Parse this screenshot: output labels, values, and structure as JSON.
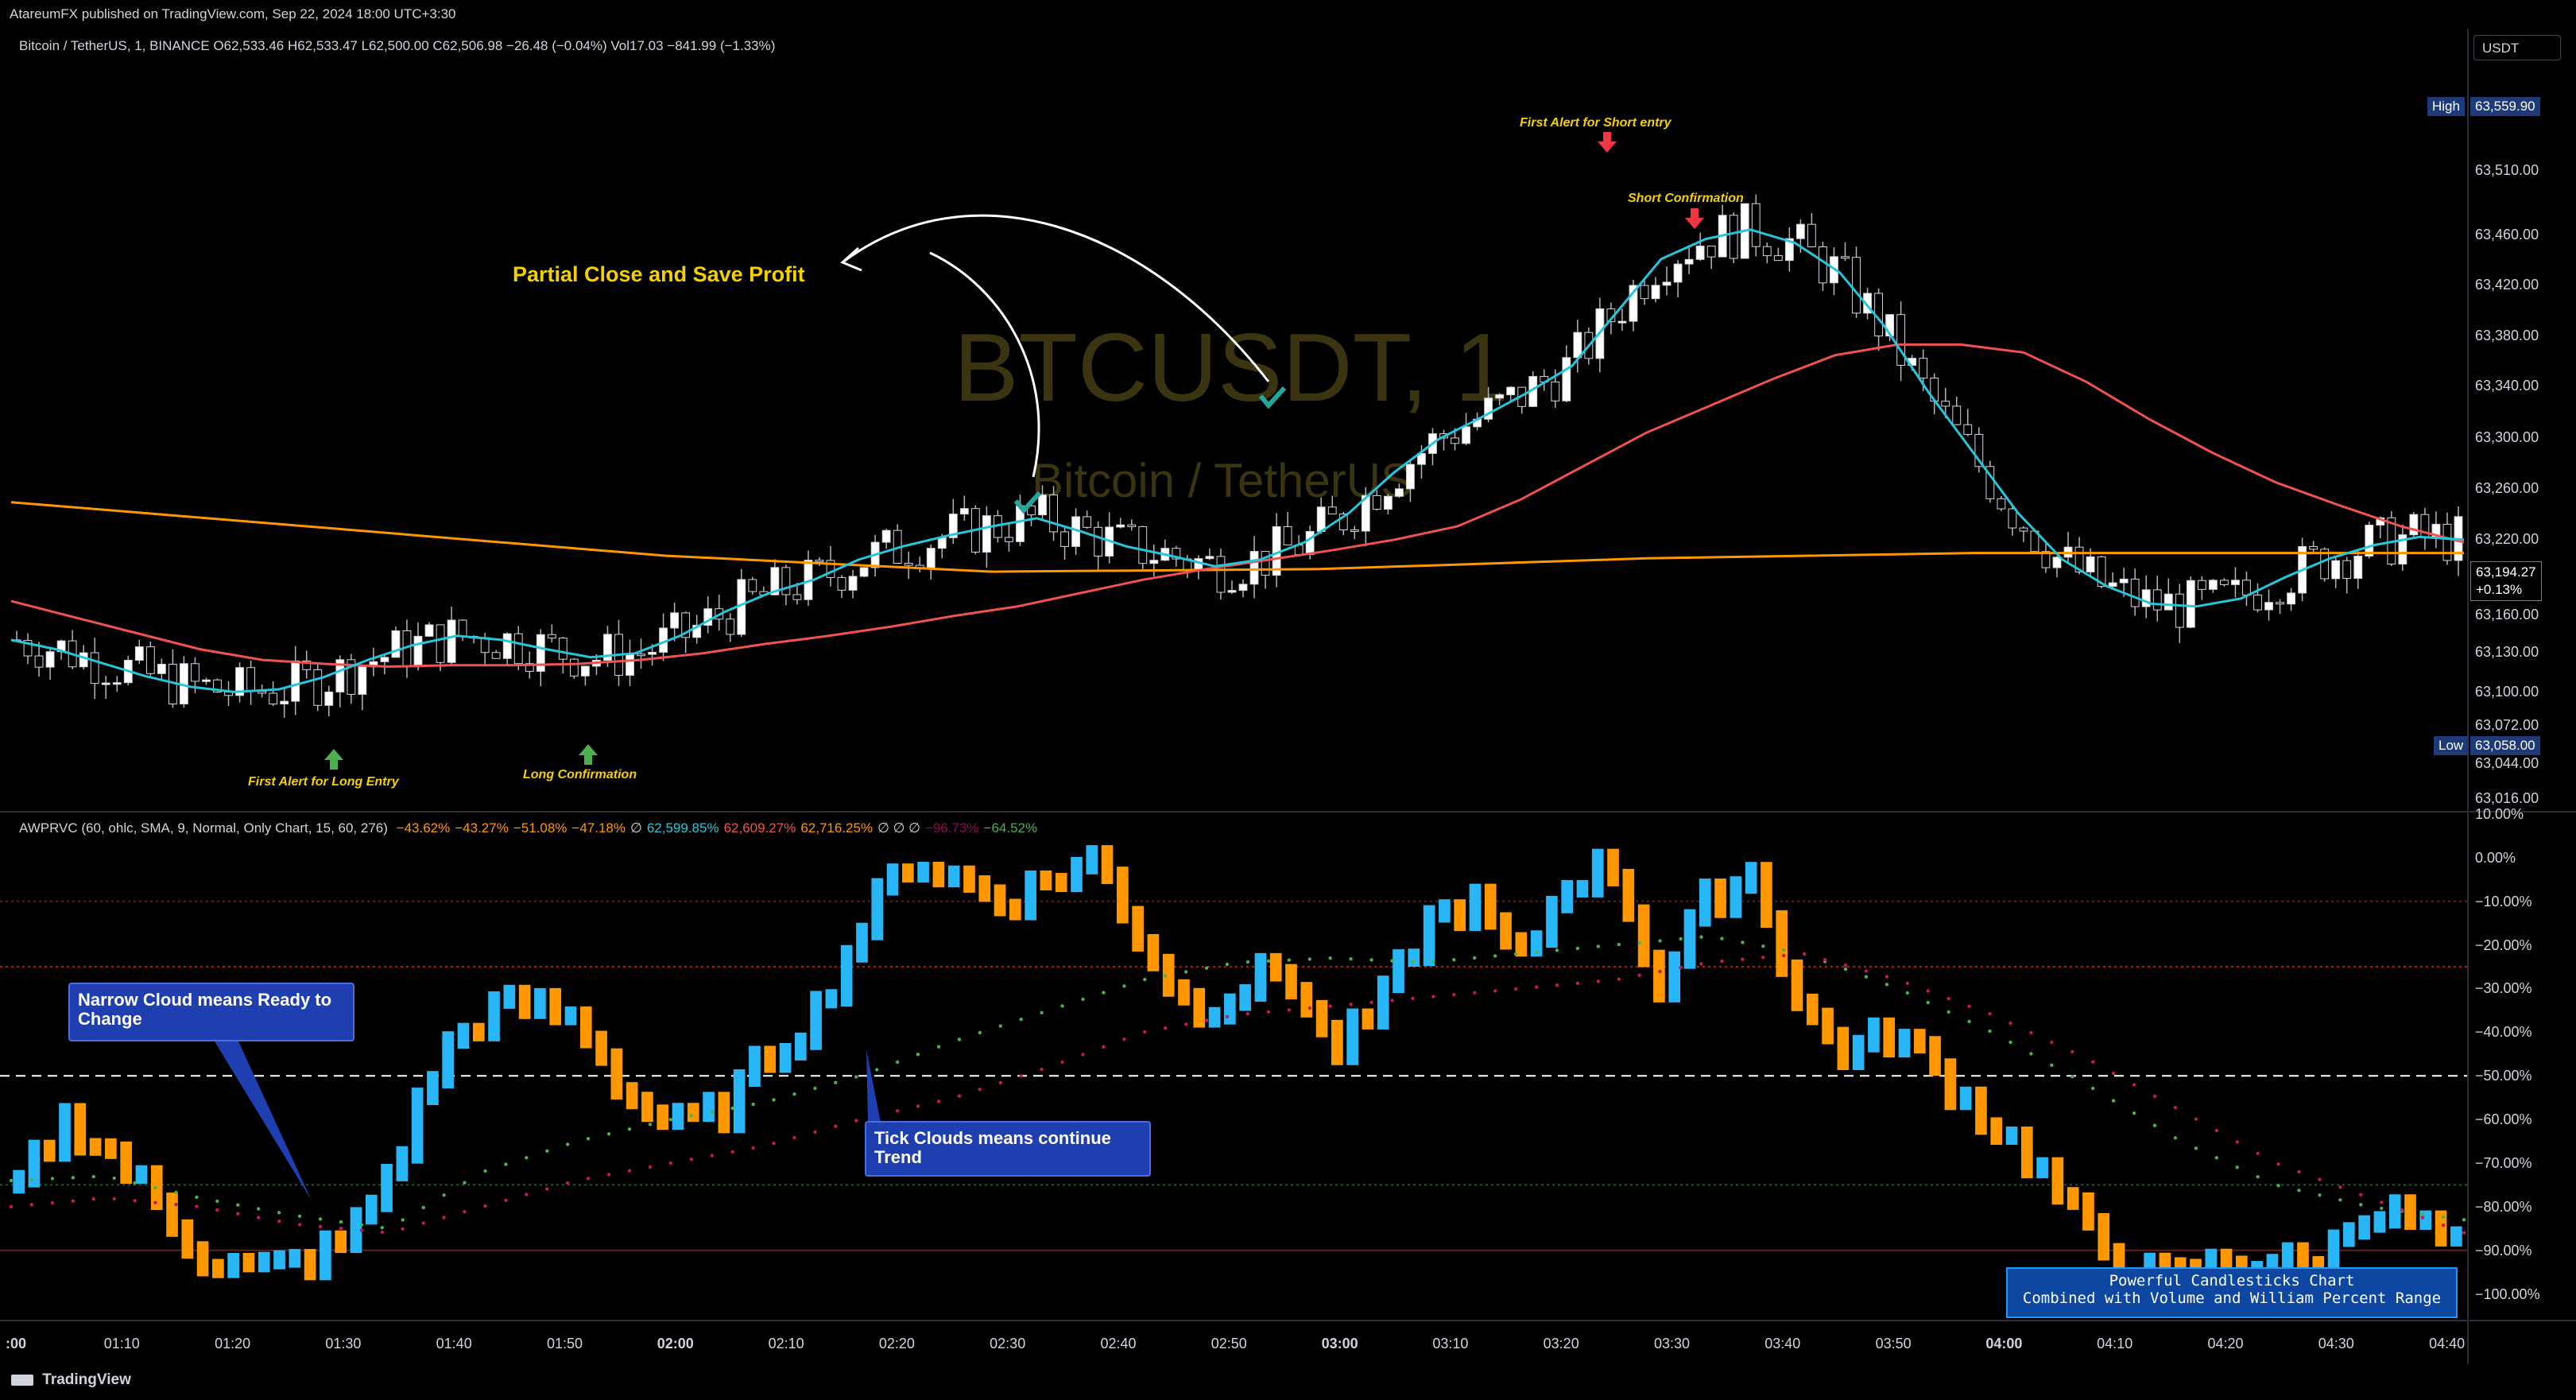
{
  "header": {
    "publisher": "AtareumFX published on TradingView.com, Sep 22, 2024 18:00 UTC+3:30",
    "symbol_line": "Bitcoin / TetherUS, 1, BINANCE  O62,533.46  H62,533.47  L62,500.00  C62,506.98  −26.48 (−0.04%)  Vol17.03  −841.99 (−1.33%)",
    "currency": "USDT"
  },
  "watermark": {
    "ticker": "BTCUSDT, 1",
    "name": "Bitcoin / TetherUS"
  },
  "annotations": {
    "partial_close": "Partial Close and Save Profit",
    "first_alert_long": "First Alert for Long Entry",
    "long_confirmation": "Long Confirmation",
    "first_alert_short": "First Alert for Short entry",
    "short_confirmation": "Short Confirmation",
    "narrow_cloud": "Narrow Cloud means Ready to Change",
    "tick_clouds": "Tick Clouds means continue Trend",
    "powerful_line1": "Powerful Candlesticks Chart",
    "powerful_line2": "Combined with Volume and William Percent Range"
  },
  "indicator_legend": {
    "name": "AWPRVC (60, ohlc, SMA, 9, Normal, Only Chart, 15, 60, 276)",
    "values": [
      {
        "text": "−43.62%",
        "color": "#ff9800"
      },
      {
        "text": "−43.27%",
        "color": "#ff9800"
      },
      {
        "text": "−51.08%",
        "color": "#ff9800"
      },
      {
        "text": "−47.18%",
        "color": "#ff9800"
      },
      {
        "text": "∅",
        "color": "#d1d4dc"
      },
      {
        "text": "62,599.85%",
        "color": "#26c6da"
      },
      {
        "text": "62,609.27%",
        "color": "#ef5350"
      },
      {
        "text": "62,716.25%",
        "color": "#ff9800"
      },
      {
        "text": "∅ ∅ ∅",
        "color": "#d1d4dc"
      },
      {
        "text": "−96.73%",
        "color": "#880e4f"
      },
      {
        "text": "−64.52%",
        "color": "#4caf50"
      }
    ]
  },
  "price_axis": {
    "labels": [
      "63,510.00",
      "63,460.00",
      "63,420.00",
      "63,380.00",
      "63,340.00",
      "63,300.00",
      "63,260.00",
      "63,220.00",
      "63,160.00",
      "63,130.00",
      "63,100.00",
      "63,072.00",
      "63,044.00",
      "63,016.00"
    ],
    "high": {
      "tag": "High",
      "value": "63,559.90"
    },
    "low": {
      "tag": "Low",
      "value": "63,058.00"
    },
    "last": {
      "value": "63,194.27",
      "change": "+0.13%"
    }
  },
  "wpr_axis": {
    "labels": [
      "10.00%",
      "0.00%",
      "−10.00%",
      "−20.00%",
      "−30.00%",
      "−40.00%",
      "−50.00%",
      "−60.00%",
      "−70.00%",
      "−80.00%",
      "−90.00%",
      "−100.00%"
    ]
  },
  "time_axis": {
    "labels": [
      {
        "text": ":00",
        "bold": true
      },
      {
        "text": "01:10",
        "bold": false
      },
      {
        "text": "01:20",
        "bold": false
      },
      {
        "text": "01:30",
        "bold": false
      },
      {
        "text": "01:40",
        "bold": false
      },
      {
        "text": "01:50",
        "bold": false
      },
      {
        "text": "02:00",
        "bold": true
      },
      {
        "text": "02:10",
        "bold": false
      },
      {
        "text": "02:20",
        "bold": false
      },
      {
        "text": "02:30",
        "bold": false
      },
      {
        "text": "02:40",
        "bold": false
      },
      {
        "text": "02:50",
        "bold": false
      },
      {
        "text": "03:00",
        "bold": true
      },
      {
        "text": "03:10",
        "bold": false
      },
      {
        "text": "03:20",
        "bold": false
      },
      {
        "text": "03:30",
        "bold": false
      },
      {
        "text": "03:40",
        "bold": false
      },
      {
        "text": "03:50",
        "bold": false
      },
      {
        "text": "04:00",
        "bold": true
      },
      {
        "text": "04:10",
        "bold": false
      },
      {
        "text": "04:20",
        "bold": false
      },
      {
        "text": "04:30",
        "bold": false
      },
      {
        "text": "04:40",
        "bold": false
      }
    ]
  },
  "footer": {
    "brand": "TradingView"
  },
  "colors": {
    "up": "#ffffff",
    "down": "#000000",
    "wick": "#b2b5be",
    "ema_fast": "#26c6da",
    "ema_mid": "#ef5350",
    "ema_slow": "#ff9800",
    "wpr_up": "#29b6f6",
    "wpr_down": "#ff9800",
    "cloud_green": "#4caf50",
    "cloud_red": "#c2185b",
    "label_bg": "#1e3a78"
  },
  "chart_data": [
    {
      "type": "candlestick",
      "title": "Bitcoin / TetherUS, 1, BINANCE",
      "ylim": [
        63000,
        63580
      ],
      "x_range": [
        "00:57",
        "04:42"
      ],
      "ema_fast": [
        63125,
        63118,
        63108,
        63098,
        63090,
        63086,
        63088,
        63097,
        63110,
        63121,
        63128,
        63125,
        63118,
        63112,
        63115,
        63128,
        63146,
        63160,
        63170,
        63185,
        63195,
        63203,
        63210,
        63216,
        63206,
        63195,
        63188,
        63180,
        63185,
        63198,
        63220,
        63250,
        63275,
        63292,
        63310,
        63330,
        63370,
        63410,
        63425,
        63432,
        63422,
        63400,
        63360,
        63310,
        63265,
        63220,
        63185,
        63165,
        63152,
        63150,
        63156,
        63172,
        63186,
        63196,
        63202,
        63200
      ],
      "ema_mid": [
        63154,
        63142,
        63130,
        63118,
        63110,
        63107,
        63105,
        63106,
        63106,
        63107,
        63110,
        63115,
        63122,
        63128,
        63135,
        63143,
        63150,
        63160,
        63170,
        63178,
        63185,
        63192,
        63200,
        63210,
        63230,
        63255,
        63280,
        63300,
        63320,
        63338,
        63346,
        63346,
        63340,
        63318,
        63290,
        63265,
        63243,
        63226,
        63210,
        63198
      ],
      "ema_slow": [
        63228,
        63218,
        63208,
        63198,
        63188,
        63182,
        63176,
        63177,
        63178,
        63182,
        63186,
        63188,
        63190,
        63190,
        63190,
        63190
      ],
      "candles": "synthetic-ohlc-series"
    },
    {
      "type": "bar",
      "title": "AWPRVC (60, ohlc, SMA, 9, Normal, Only Chart, 15, 60, 276)",
      "ylim": [
        -105,
        10
      ],
      "levels": [
        -10,
        -25,
        -50,
        -75,
        -90
      ],
      "wpr_close": [
        -75,
        -60,
        -68,
        -80,
        -92,
        -95,
        -93,
        -88,
        -70,
        -45,
        -35,
        -34,
        -38,
        -55,
        -62,
        -58,
        -45,
        -35,
        -15,
        0,
        -5,
        -10,
        -5,
        0,
        -20,
        -35,
        -30,
        -25,
        -45,
        -35,
        -15,
        -10,
        -25,
        -5,
        -2,
        -30,
        -10,
        -3,
        -35,
        -45,
        -40,
        -50,
        -60,
        -70,
        -85,
        -95,
        -97,
        -93,
        -92,
        -95,
        -80,
        -83,
        -90
      ]
    }
  ]
}
